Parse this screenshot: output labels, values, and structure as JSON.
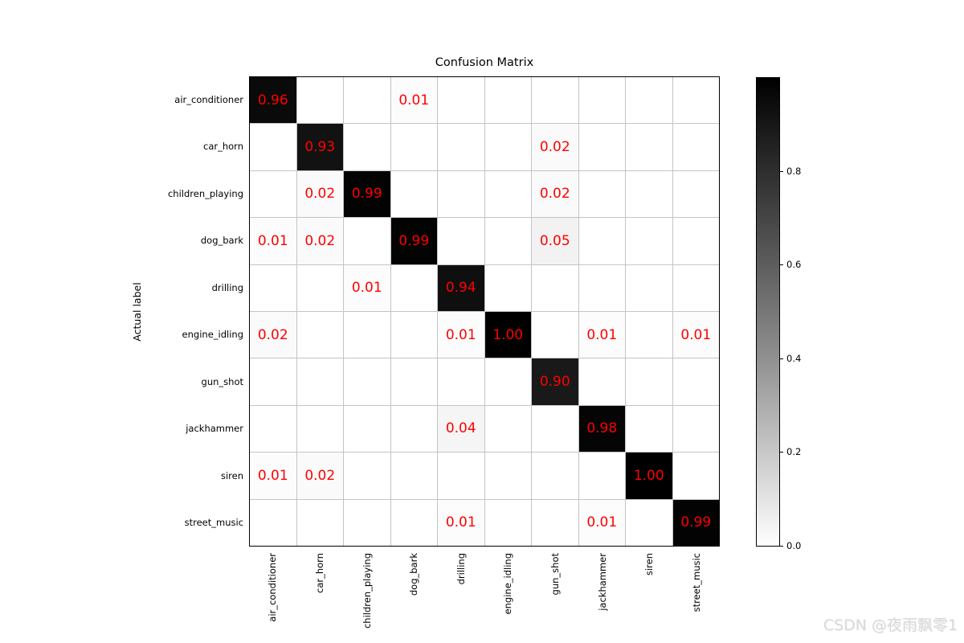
{
  "figure": {
    "watermark": "CSDN @夜雨飘零1"
  },
  "chart_data": {
    "type": "heatmap",
    "title": "Confusion Matrix",
    "ylabel": "Actual label",
    "xlabel": "",
    "categories": [
      "air_conditioner",
      "car_horn",
      "children_playing",
      "dog_bark",
      "drilling",
      "engine_idling",
      "gun_shot",
      "jackhammer",
      "siren",
      "street_music"
    ],
    "matrix": [
      [
        0.96,
        0,
        0,
        0.01,
        0,
        0,
        0,
        0,
        0,
        0
      ],
      [
        0,
        0.93,
        0,
        0,
        0,
        0,
        0.02,
        0,
        0,
        0
      ],
      [
        0,
        0.02,
        0.99,
        0,
        0,
        0,
        0.02,
        0,
        0,
        0
      ],
      [
        0.01,
        0.02,
        0,
        0.99,
        0,
        0,
        0.05,
        0,
        0,
        0
      ],
      [
        0,
        0,
        0.01,
        0,
        0.94,
        0,
        0,
        0,
        0,
        0
      ],
      [
        0.02,
        0,
        0,
        0,
        0.01,
        1.0,
        0,
        0.01,
        0,
        0.01
      ],
      [
        0,
        0,
        0,
        0,
        0,
        0,
        0.9,
        0,
        0,
        0
      ],
      [
        0,
        0,
        0,
        0,
        0.04,
        0,
        0,
        0.98,
        0,
        0
      ],
      [
        0.01,
        0.02,
        0,
        0,
        0,
        0,
        0,
        0,
        1.0,
        0
      ],
      [
        0,
        0,
        0,
        0,
        0.01,
        0,
        0,
        0.01,
        0,
        0.99
      ]
    ],
    "value_display": "two decimals, only non-zero values annotated",
    "annotation_color": "#ff0000",
    "colormap": "Greys (0 = white, 1 = black)",
    "grid": true,
    "colorbar": {
      "position": "right",
      "range": [
        0.0,
        1.0
      ],
      "ticks": [
        0.8,
        0.6,
        0.4,
        0.2,
        0.0
      ]
    }
  }
}
